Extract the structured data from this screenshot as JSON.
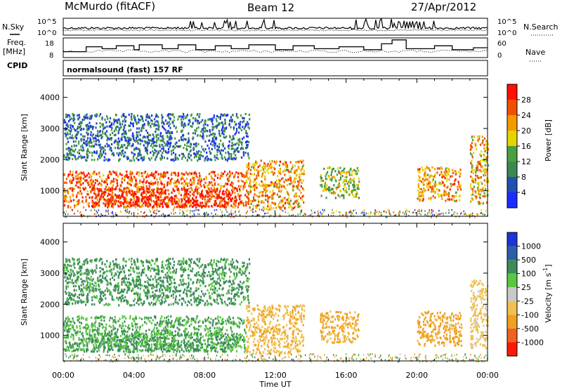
{
  "header": {
    "station": "McMurdo (fitACF)",
    "beam": "Beam 12",
    "date": "27/Apr/2012"
  },
  "left_labels": {
    "nsky": "N.Sky",
    "freq_line1": "Freq.",
    "freq_line2": "[MHz]",
    "cpid": "CPID"
  },
  "right_labels": {
    "nsearch": "N.Search",
    "nave": "Nave"
  },
  "noise_panel": {
    "left_ticks": [
      "10^5",
      "10^0"
    ],
    "right_ticks": [
      "10^5",
      "10^0"
    ]
  },
  "freq_panel": {
    "left_ticks": [
      "18",
      "8"
    ],
    "right_ticks": [
      "60",
      "0"
    ],
    "freq_steps_mhz": [
      {
        "t": 0.0,
        "f": 11.0
      },
      {
        "t": 1.3,
        "f": 13.5
      },
      {
        "t": 2.2,
        "f": 12.5
      },
      {
        "t": 3.0,
        "f": 14.0
      },
      {
        "t": 4.0,
        "f": 12.0
      },
      {
        "t": 4.3,
        "f": 14.5
      },
      {
        "t": 5.6,
        "f": 12.5
      },
      {
        "t": 6.5,
        "f": 14.5
      },
      {
        "t": 7.5,
        "f": 12.0
      },
      {
        "t": 8.6,
        "f": 14.0
      },
      {
        "t": 9.5,
        "f": 12.5
      },
      {
        "t": 10.5,
        "f": 14.5
      },
      {
        "t": 12.0,
        "f": 12.0
      },
      {
        "t": 13.0,
        "f": 14.0
      },
      {
        "t": 14.2,
        "f": 12.5
      },
      {
        "t": 15.6,
        "f": 13.5
      },
      {
        "t": 17.0,
        "f": 12.0
      },
      {
        "t": 18.0,
        "f": 15.0
      },
      {
        "t": 18.6,
        "f": 17.0
      },
      {
        "t": 19.4,
        "f": 12.5
      },
      {
        "t": 21.0,
        "f": 14.0
      },
      {
        "t": 22.0,
        "f": 12.0
      },
      {
        "t": 23.2,
        "f": 13.0
      },
      {
        "t": 24.0,
        "f": 13.0
      }
    ]
  },
  "cpid_text": "normalsound (fast) 157 RF",
  "x_axis": {
    "label": "Time UT",
    "ticks": [
      "00:00",
      "04:00",
      "08:00",
      "12:00",
      "16:00",
      "20:00",
      "00:00"
    ]
  },
  "y_axis": {
    "label": "Slant Range [km]",
    "ticks": [
      "1000",
      "2000",
      "3000",
      "4000"
    ]
  },
  "power_scale": {
    "label": "Power [dB]",
    "ticks": [
      "4",
      "8",
      "12",
      "16",
      "20",
      "24",
      "28"
    ],
    "colors": [
      "#1c2cff",
      "#2050b0",
      "#3a8a50",
      "#4aa040",
      "#e6d400",
      "#f39a00",
      "#f05000",
      "#ff1000"
    ]
  },
  "velocity_scale": {
    "label_main": "Velocity [m s",
    "label_sup": "-1",
    "label_end": "]",
    "ticks": [
      "1000",
      "500",
      "100",
      "25",
      "-25",
      "-100",
      "-500",
      "-1000"
    ],
    "colors": [
      "#1c34d8",
      "#2e5ea8",
      "#3d8a5c",
      "#58c840",
      "#c8c8c8",
      "#f0c050",
      "#f0a020",
      "#f06020",
      "#ff1808"
    ]
  },
  "chart_data": {
    "type": "heatmap",
    "title": "McMurdo (fitACF)",
    "x_range_hours": [
      0,
      24
    ],
    "y_range_km": [
      180,
      4600
    ],
    "ylabel": "Slant Range [km]",
    "xlabel": "Time UT",
    "panels": [
      "power",
      "velocity"
    ],
    "scatter_regions": [
      {
        "t0": 0.0,
        "t1": 10.3,
        "r0": 500,
        "r1": 1650,
        "power_db": 26,
        "velocity_ms": 100
      },
      {
        "t0": 1.5,
        "t1": 9.8,
        "r0": 500,
        "r1": 1100,
        "power_db": 30,
        "velocity_ms": 120
      },
      {
        "t0": 10.3,
        "t1": 13.6,
        "r0": 450,
        "r1": 2000,
        "power_db": 22,
        "velocity_ms": -80
      },
      {
        "t0": 14.5,
        "t1": 16.7,
        "r0": 800,
        "r1": 1800,
        "power_db": 16,
        "velocity_ms": -150
      },
      {
        "t0": 20.0,
        "t1": 22.5,
        "r0": 700,
        "r1": 1800,
        "power_db": 22,
        "velocity_ms": -200
      },
      {
        "t0": 23.0,
        "t1": 24.0,
        "r0": 600,
        "r1": 2800,
        "power_db": 20,
        "velocity_ms": -50
      },
      {
        "t0": 0.0,
        "t1": 10.5,
        "r0": 2000,
        "r1": 3500,
        "power_db": 8,
        "velocity_ms": 150
      }
    ]
  }
}
